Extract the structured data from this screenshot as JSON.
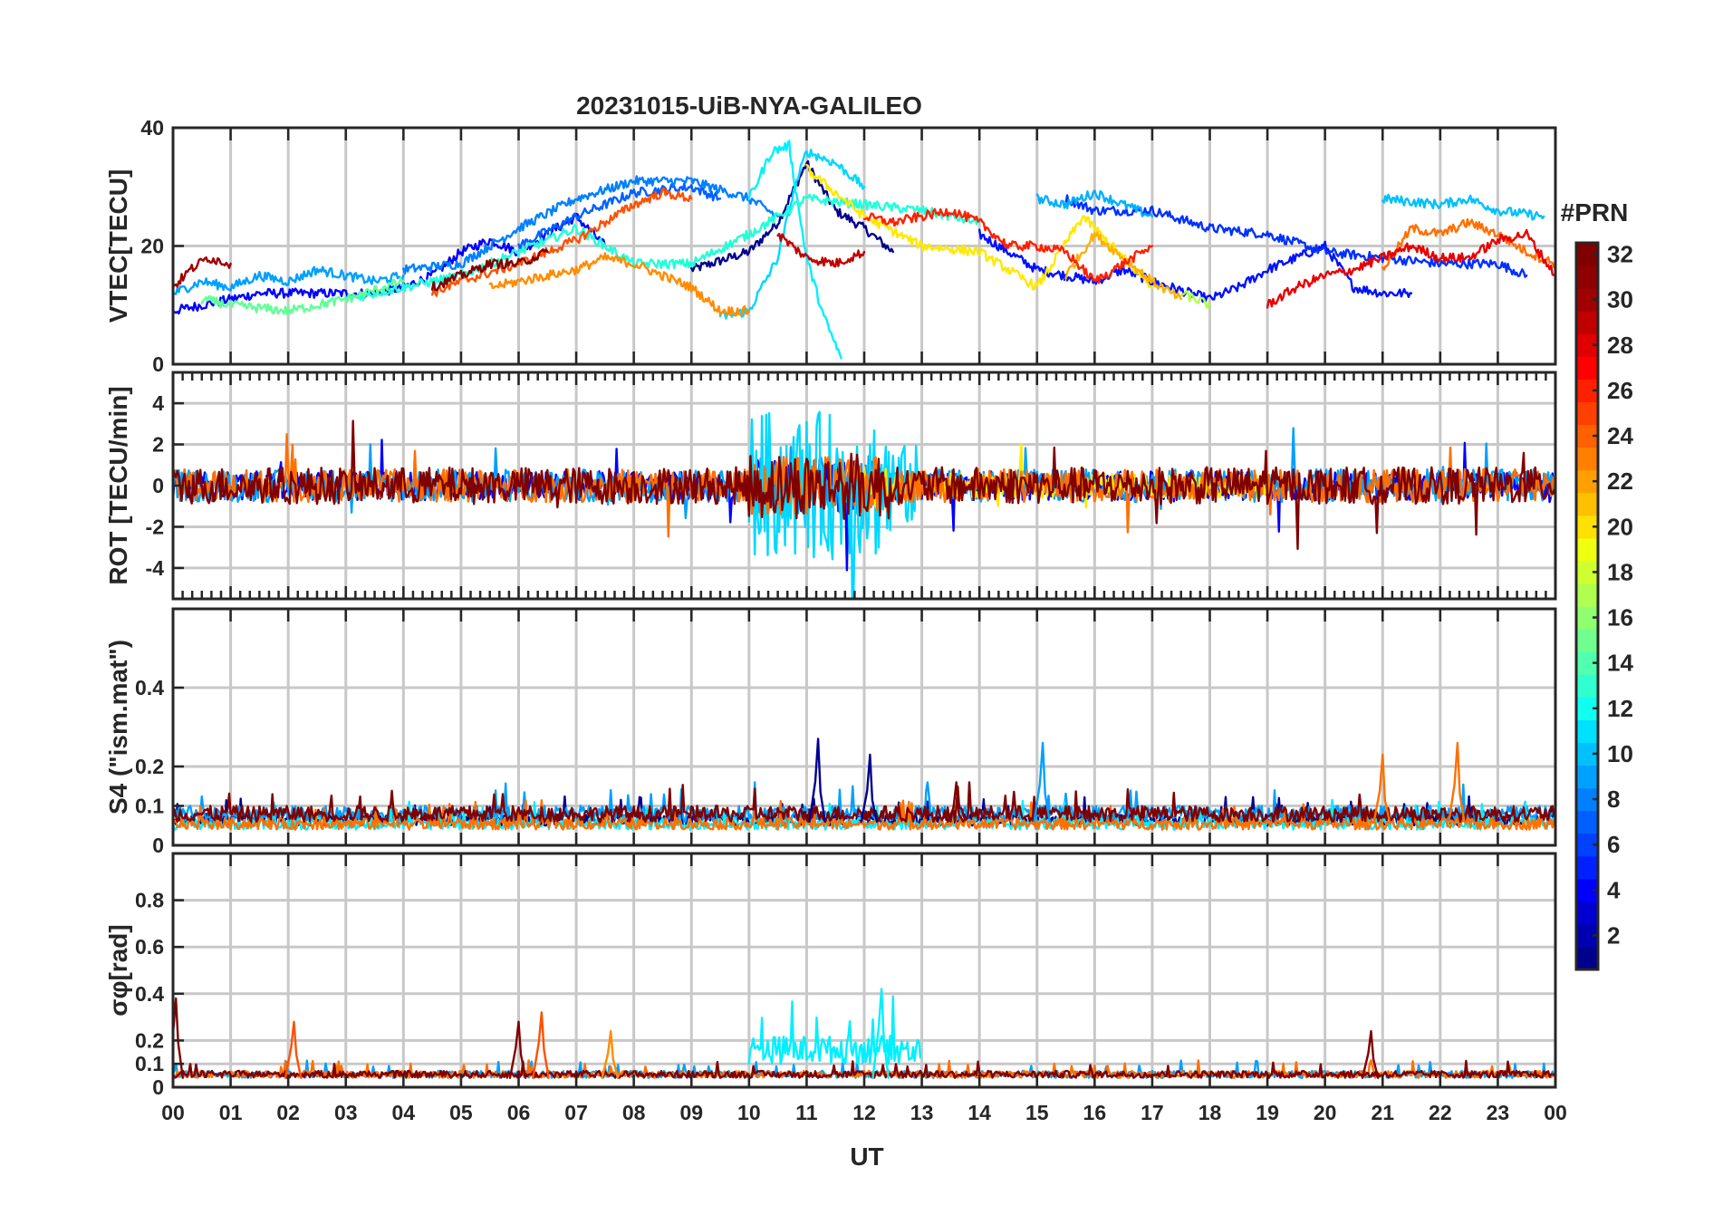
{
  "chart_data": {
    "type": "line",
    "title": "20231015-UiB-NYA-GALILEO",
    "xlabel": "UT",
    "x_tick_labels": [
      "00",
      "01",
      "02",
      "03",
      "04",
      "05",
      "06",
      "07",
      "08",
      "09",
      "10",
      "11",
      "12",
      "13",
      "14",
      "15",
      "16",
      "17",
      "18",
      "19",
      "20",
      "21",
      "22",
      "23",
      "00"
    ],
    "xlim_hours": [
      0,
      24
    ],
    "panels": [
      {
        "id": "vtec",
        "ylabel": "VTEC[TECU]",
        "ylim": [
          0,
          40
        ],
        "y_ticks": [
          0,
          20,
          40
        ],
        "y_tick_labels": [
          "0",
          "20",
          "40"
        ],
        "series": [
          {
            "prn": 1,
            "color": "#00008f",
            "t": [
              9.0,
              10.0,
              10.5,
              11.0,
              11.5,
              12.0,
              12.5
            ],
            "v": [
              16,
              19,
              24,
              34,
              26,
              23,
              19
            ]
          },
          {
            "prn": 3,
            "color": "#0000ff",
            "t": [
              0.0,
              0.5,
              1.5,
              2.5,
              3.5,
              4.0,
              4.5,
              5.0,
              5.5,
              6.0,
              7.0,
              7.5
            ],
            "v": [
              9,
              10,
              12,
              12,
              12,
              13,
              15,
              19,
              21,
              19,
              25,
              20
            ]
          },
          {
            "prn": 4,
            "color": "#0010ff",
            "t": [
              14.0,
              15.0,
              16.0,
              16.5,
              17.0,
              18.0,
              18.5,
              19.0,
              20.0,
              20.5,
              21.0,
              21.5
            ],
            "v": [
              22,
              16,
              14,
              16,
              14,
              11,
              13,
              16,
              20,
              13,
              12,
              12
            ]
          },
          {
            "prn": 5,
            "color": "#0030ff",
            "t": [
              15.5,
              16.0,
              17.0,
              18.0,
              19.0,
              20.0,
              21.0,
              22.0,
              23.0,
              23.5
            ],
            "v": [
              28,
              26,
              26,
              23,
              22,
              19,
              18,
              17,
              17,
              15
            ]
          },
          {
            "prn": 7,
            "color": "#0060ff",
            "t": [
              6.0,
              7.0,
              8.0,
              9.0,
              9.5
            ],
            "v": [
              20,
              25,
              29,
              30,
              28
            ]
          },
          {
            "prn": 8,
            "color": "#0080ff",
            "t": [
              4.0,
              5.0,
              6.0,
              7.0,
              8.0,
              9.0,
              10.0,
              10.5
            ],
            "v": [
              16,
              17,
              23,
              28,
              31,
              31,
              28,
              25
            ]
          },
          {
            "prn": 9,
            "color": "#00a0ff",
            "t": [
              0.0,
              0.5,
              1.0,
              1.5,
              2.0,
              2.5,
              3.0,
              3.5,
              4.0
            ],
            "v": [
              12,
              14,
              13,
              15,
              14,
              16,
              15,
              14,
              15
            ]
          },
          {
            "prn": 10,
            "color": "#00b0ff",
            "t": [
              15.0,
              15.5,
              16.0,
              16.5,
              17.0
            ],
            "v": [
              28,
              27,
              29,
              27,
              25
            ]
          },
          {
            "prn": 11,
            "color": "#00c0ff",
            "t": [
              21.0,
              22.0,
              22.5,
              23.0,
              23.8
            ],
            "v": [
              28,
              27,
              28,
              26,
              25
            ]
          },
          {
            "prn": 12,
            "color": "#00d8ff",
            "t": [
              9.5,
              10.0,
              10.5,
              10.8,
              11.0,
              11.5,
              12.0
            ],
            "v": [
              8,
              9,
              18,
              30,
              36,
              34,
              30
            ]
          },
          {
            "prn": 13,
            "color": "#00f0ff",
            "t": [
              10.0,
              10.4,
              10.7,
              10.8,
              11.0,
              11.3,
              11.6
            ],
            "v": [
              28,
              36,
              37,
              30,
              18,
              8,
              1
            ]
          },
          {
            "prn": 14,
            "color": "#20ffd8",
            "t": [
              3.0,
              4.0,
              5.0,
              6.0,
              7.0,
              8.0,
              9.0,
              10.0,
              11.0,
              12.0,
              13.0,
              14.0
            ],
            "v": [
              11,
              13,
              15,
              19,
              23,
              17,
              17,
              22,
              28,
              27,
              26,
              24
            ]
          },
          {
            "prn": 16,
            "color": "#60ff98",
            "t": [
              0.5,
              1.0,
              2.0,
              3.0,
              4.0
            ],
            "v": [
              11,
              10,
              9,
              11,
              14
            ]
          },
          {
            "prn": 18,
            "color": "#b0ff48",
            "t": [
              17.5,
              18.0
            ],
            "v": [
              12,
              10
            ]
          },
          {
            "prn": 20,
            "color": "#ffe800",
            "t": [
              11.0,
              12.0,
              13.0,
              14.0,
              15.0,
              15.8,
              16.3,
              17.0
            ],
            "v": [
              33,
              25,
              20,
              19,
              13,
              25,
              20,
              13
            ]
          },
          {
            "prn": 22,
            "color": "#ffb000",
            "t": [
              15.5,
              16.0,
              16.5,
              17.0,
              17.5
            ],
            "v": [
              15,
              22,
              18,
              14,
              11
            ]
          },
          {
            "prn": 23,
            "color": "#ff8c00",
            "t": [
              5.5,
              6.5,
              7.0,
              7.5,
              8.0,
              9.0,
              9.5,
              10.0
            ],
            "v": [
              13,
              15,
              16,
              18,
              17,
              13,
              9,
              9
            ]
          },
          {
            "prn": 24,
            "color": "#ff7000",
            "t": [
              21.0,
              21.5,
              22.0,
              22.5,
              23.0,
              23.5,
              24.0
            ],
            "v": [
              16,
              23,
              22,
              24,
              22,
              19,
              17
            ]
          },
          {
            "prn": 25,
            "color": "#ff5000",
            "t": [
              4.5,
              5.0,
              6.0,
              7.0,
              8.0,
              8.5,
              9.0
            ],
            "v": [
              12,
              14,
              17,
              21,
              27,
              29,
              28
            ]
          },
          {
            "prn": 27,
            "color": "#ff2000",
            "t": [
              12.0,
              12.5,
              13.0,
              13.5,
              14.0,
              14.5,
              15.0,
              15.5,
              16.0,
              16.5,
              17.0
            ],
            "v": [
              25,
              24,
              25,
              26,
              24,
              20,
              20,
              19,
              14,
              17,
              20
            ]
          },
          {
            "prn": 29,
            "color": "#e80000",
            "t": [
              19.0,
              19.5,
              20.0,
              20.5,
              21.0,
              21.5,
              22.0,
              22.5,
              23.0,
              23.5,
              24.0
            ],
            "v": [
              10,
              13,
              15,
              16,
              18,
              20,
              18,
              18,
              21,
              22,
              15
            ]
          },
          {
            "prn": 30,
            "color": "#c00000",
            "t": [
              10.5,
              11.0,
              11.5,
              12.0
            ],
            "v": [
              22,
              18,
              17,
              19
            ]
          },
          {
            "prn": 31,
            "color": "#9f0000",
            "t": [
              0.0,
              0.3,
              0.6,
              1.0
            ],
            "v": [
              13,
              16,
              18,
              17
            ]
          },
          {
            "prn": 32,
            "color": "#800000",
            "t": [
              4.5,
              5.0,
              5.5,
              6.0,
              6.5
            ],
            "v": [
              13,
              15,
              17,
              17,
              19
            ]
          }
        ]
      },
      {
        "id": "rot",
        "ylabel": "ROT [TECU/min]",
        "ylim": [
          -5.5,
          5.5
        ],
        "y_ticks": [
          -4,
          -2,
          0,
          2,
          4
        ],
        "y_tick_labels": [
          "-4",
          "-2",
          "0",
          "2",
          "4"
        ],
        "noise_bands": [
          {
            "prn": 3,
            "color": "#0000ff",
            "t0": 0,
            "t1": 24,
            "amp": 0.7
          },
          {
            "prn": 9,
            "color": "#00a0ff",
            "t0": 0,
            "t1": 24,
            "amp": 0.8
          },
          {
            "prn": 12,
            "color": "#00d8ff",
            "t0": 10,
            "t1": 13,
            "amp": 2.0
          },
          {
            "prn": 20,
            "color": "#ffe800",
            "t0": 12,
            "t1": 19,
            "amp": 0.6
          },
          {
            "prn": 24,
            "color": "#ff7000",
            "t0": 0,
            "t1": 24,
            "amp": 0.8
          },
          {
            "prn": 32,
            "color": "#800000",
            "t0": 0,
            "t1": 24,
            "amp": 0.9
          }
        ]
      },
      {
        "id": "s4",
        "ylabel": "S4 (\"ism.mat\")",
        "ylim": [
          0,
          0.6
        ],
        "y_ticks": [
          0,
          0.1,
          0.2,
          0.4
        ],
        "y_tick_labels": [
          "0",
          "0.1",
          "0.2",
          "0.4"
        ],
        "noise_bands": [
          {
            "prn": 1,
            "color": "#00008f",
            "t0": 0,
            "t1": 24,
            "base": 0.05,
            "amp": 0.03
          },
          {
            "prn": 9,
            "color": "#00a0ff",
            "t0": 0,
            "t1": 24,
            "base": 0.06,
            "amp": 0.04
          },
          {
            "prn": 13,
            "color": "#00f0ff",
            "t0": 0,
            "t1": 24,
            "base": 0.04,
            "amp": 0.03
          },
          {
            "prn": 24,
            "color": "#ff7000",
            "t0": 0,
            "t1": 24,
            "base": 0.04,
            "amp": 0.03
          },
          {
            "prn": 32,
            "color": "#800000",
            "t0": 0,
            "t1": 24,
            "base": 0.06,
            "amp": 0.04
          }
        ],
        "peaks": [
          {
            "color": "#00008f",
            "t": 11.2,
            "v": 0.27
          },
          {
            "color": "#00008f",
            "t": 12.1,
            "v": 0.23
          },
          {
            "color": "#00a0ff",
            "t": 15.1,
            "v": 0.26
          },
          {
            "color": "#ff7000",
            "t": 21.0,
            "v": 0.23
          },
          {
            "color": "#ff7000",
            "t": 22.3,
            "v": 0.26
          },
          {
            "color": "#800000",
            "t": 13.6,
            "v": 0.16
          }
        ]
      },
      {
        "id": "sigphi",
        "ylabel": "σφ[rad]",
        "ylim": [
          0,
          1.0
        ],
        "y_ticks": [
          0,
          0.1,
          0.2,
          0.4,
          0.6,
          0.8
        ],
        "y_tick_labels": [
          "0",
          "0.1",
          "0.2",
          "0.4",
          "0.6",
          "0.8"
        ],
        "noise_bands": [
          {
            "prn": 9,
            "color": "#00a0ff",
            "t0": 0,
            "t1": 24,
            "base": 0.04,
            "amp": 0.03
          },
          {
            "prn": 13,
            "color": "#00f0ff",
            "t0": 10,
            "t1": 13,
            "base": 0.1,
            "amp": 0.12
          },
          {
            "prn": 24,
            "color": "#ff7000",
            "t0": 0,
            "t1": 24,
            "base": 0.04,
            "amp": 0.03
          },
          {
            "prn": 32,
            "color": "#800000",
            "t0": 0,
            "t1": 24,
            "base": 0.04,
            "amp": 0.03
          }
        ],
        "peaks": [
          {
            "color": "#800000",
            "t": 0.05,
            "v": 0.38
          },
          {
            "color": "#ff5000",
            "t": 2.1,
            "v": 0.28
          },
          {
            "color": "#800000",
            "t": 6.0,
            "v": 0.28
          },
          {
            "color": "#ff5000",
            "t": 6.4,
            "v": 0.32
          },
          {
            "color": "#ff8c00",
            "t": 7.6,
            "v": 0.24
          },
          {
            "color": "#00f0ff",
            "t": 12.3,
            "v": 0.42
          },
          {
            "color": "#800000",
            "t": 20.8,
            "v": 0.24
          }
        ]
      }
    ],
    "colorbar": {
      "label": "#PRN",
      "range": [
        1,
        32
      ],
      "tick_labels": [
        "2",
        "4",
        "6",
        "8",
        "10",
        "12",
        "14",
        "16",
        "18",
        "20",
        "22",
        "24",
        "26",
        "28",
        "30",
        "32"
      ],
      "colors": [
        "#00008f",
        "#0000b0",
        "#0000d0",
        "#0000ff",
        "#0020ff",
        "#0040ff",
        "#0060ff",
        "#0080ff",
        "#00a0ff",
        "#00c0ff",
        "#00e0ff",
        "#10ffef",
        "#30ffcf",
        "#50ffaf",
        "#70ff8f",
        "#90ff6f",
        "#b0ff4f",
        "#d0ff2f",
        "#efff10",
        "#ffe000",
        "#ffc000",
        "#ffa000",
        "#ff8000",
        "#ff6000",
        "#ff4000",
        "#ff2000",
        "#ff0000",
        "#e00000",
        "#c00000",
        "#a00000",
        "#900000",
        "#800000"
      ]
    }
  }
}
